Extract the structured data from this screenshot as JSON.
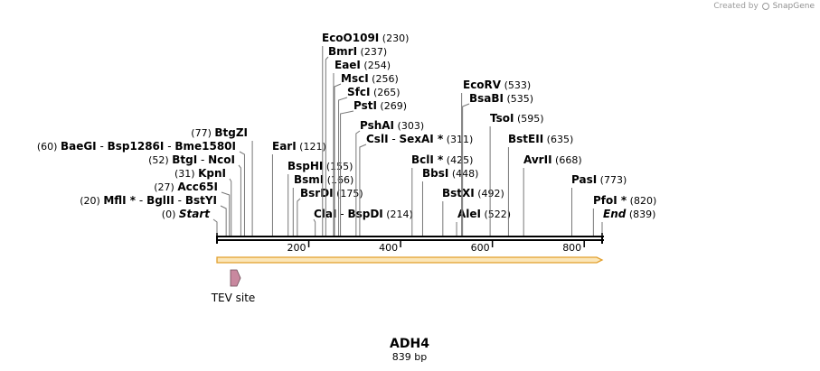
{
  "credit": {
    "text": "Created by",
    "brand": "SnapGene"
  },
  "sequence": {
    "name": "ADH4",
    "length_label": "839 bp",
    "length": 839
  },
  "scale_ticks": [
    "200",
    "400",
    "600",
    "800"
  ],
  "colors": {
    "feature": "#c9889f",
    "backbone_fill": "#fbe6b8",
    "backbone_edge": "#e29f2c"
  },
  "feature": {
    "label": "TEV site",
    "direction": "forward"
  },
  "sites": [
    {
      "pos": 0,
      "label": "(0)",
      "names": [
        {
          "t": "Start",
          "end": true
        }
      ]
    },
    {
      "pos": 20,
      "label": "(20)",
      "names": [
        {
          "t": "MflI *"
        },
        {
          "t": "BglII"
        },
        {
          "t": "BstYI"
        }
      ]
    },
    {
      "pos": 27,
      "label": "(27)",
      "names": [
        {
          "t": "Acc65I"
        }
      ]
    },
    {
      "pos": 31,
      "label": "(31)",
      "names": [
        {
          "t": "KpnI"
        }
      ]
    },
    {
      "pos": 52,
      "label": "(52)",
      "names": [
        {
          "t": "BtgI"
        },
        {
          "t": "NcoI"
        }
      ]
    },
    {
      "pos": 60,
      "label": "(60)",
      "names": [
        {
          "t": "BaeGI"
        },
        {
          "t": "Bsp1286I"
        },
        {
          "t": "Bme1580I"
        }
      ]
    },
    {
      "pos": 77,
      "label": "(77)",
      "names": [
        {
          "t": "BtgZI"
        }
      ]
    },
    {
      "pos": 121,
      "label": "(121)",
      "names": [
        {
          "t": "EarI"
        }
      ]
    },
    {
      "pos": 155,
      "label": "(155)",
      "names": [
        {
          "t": "BspHI"
        }
      ]
    },
    {
      "pos": 166,
      "label": "(166)",
      "names": [
        {
          "t": "BsmI"
        }
      ]
    },
    {
      "pos": 175,
      "label": "(175)",
      "names": [
        {
          "t": "BsrDI"
        }
      ]
    },
    {
      "pos": 214,
      "label": "(214)",
      "names": [
        {
          "t": "ClaI"
        },
        {
          "t": "BspDI"
        }
      ]
    },
    {
      "pos": 230,
      "label": "(230)",
      "names": [
        {
          "t": "EcoO109I"
        }
      ]
    },
    {
      "pos": 237,
      "label": "(237)",
      "names": [
        {
          "t": "BmrI"
        }
      ]
    },
    {
      "pos": 254,
      "label": "(254)",
      "names": [
        {
          "t": "EaeI"
        }
      ]
    },
    {
      "pos": 256,
      "label": "(256)",
      "names": [
        {
          "t": "MscI"
        }
      ]
    },
    {
      "pos": 265,
      "label": "(265)",
      "names": [
        {
          "t": "SfcI"
        }
      ]
    },
    {
      "pos": 269,
      "label": "(269)",
      "names": [
        {
          "t": "PstI"
        }
      ]
    },
    {
      "pos": 303,
      "label": "(303)",
      "names": [
        {
          "t": "PshAI"
        }
      ]
    },
    {
      "pos": 311,
      "label": "(311)",
      "names": [
        {
          "t": "CslI"
        },
        {
          "t": "SexAI *"
        }
      ]
    },
    {
      "pos": 425,
      "label": "(425)",
      "names": [
        {
          "t": "BclI *"
        }
      ]
    },
    {
      "pos": 448,
      "label": "(448)",
      "names": [
        {
          "t": "BbsI"
        }
      ]
    },
    {
      "pos": 492,
      "label": "(492)",
      "names": [
        {
          "t": "BstXI"
        }
      ]
    },
    {
      "pos": 522,
      "label": "(522)",
      "names": [
        {
          "t": "AleI"
        }
      ]
    },
    {
      "pos": 533,
      "label": "(533)",
      "names": [
        {
          "t": "EcoRV"
        }
      ]
    },
    {
      "pos": 535,
      "label": "(535)",
      "names": [
        {
          "t": "BsaBI"
        }
      ]
    },
    {
      "pos": 595,
      "label": "(595)",
      "names": [
        {
          "t": "TsoI"
        }
      ]
    },
    {
      "pos": 635,
      "label": "(635)",
      "names": [
        {
          "t": "BstEII"
        }
      ]
    },
    {
      "pos": 668,
      "label": "(668)",
      "names": [
        {
          "t": "AvrII"
        }
      ]
    },
    {
      "pos": 773,
      "label": "(773)",
      "names": [
        {
          "t": "PasI"
        }
      ]
    },
    {
      "pos": 820,
      "label": "(820)",
      "names": [
        {
          "t": "PfoI *"
        }
      ]
    },
    {
      "pos": 839,
      "label": "(839)",
      "names": [
        {
          "t": "End",
          "end": true
        }
      ]
    }
  ]
}
